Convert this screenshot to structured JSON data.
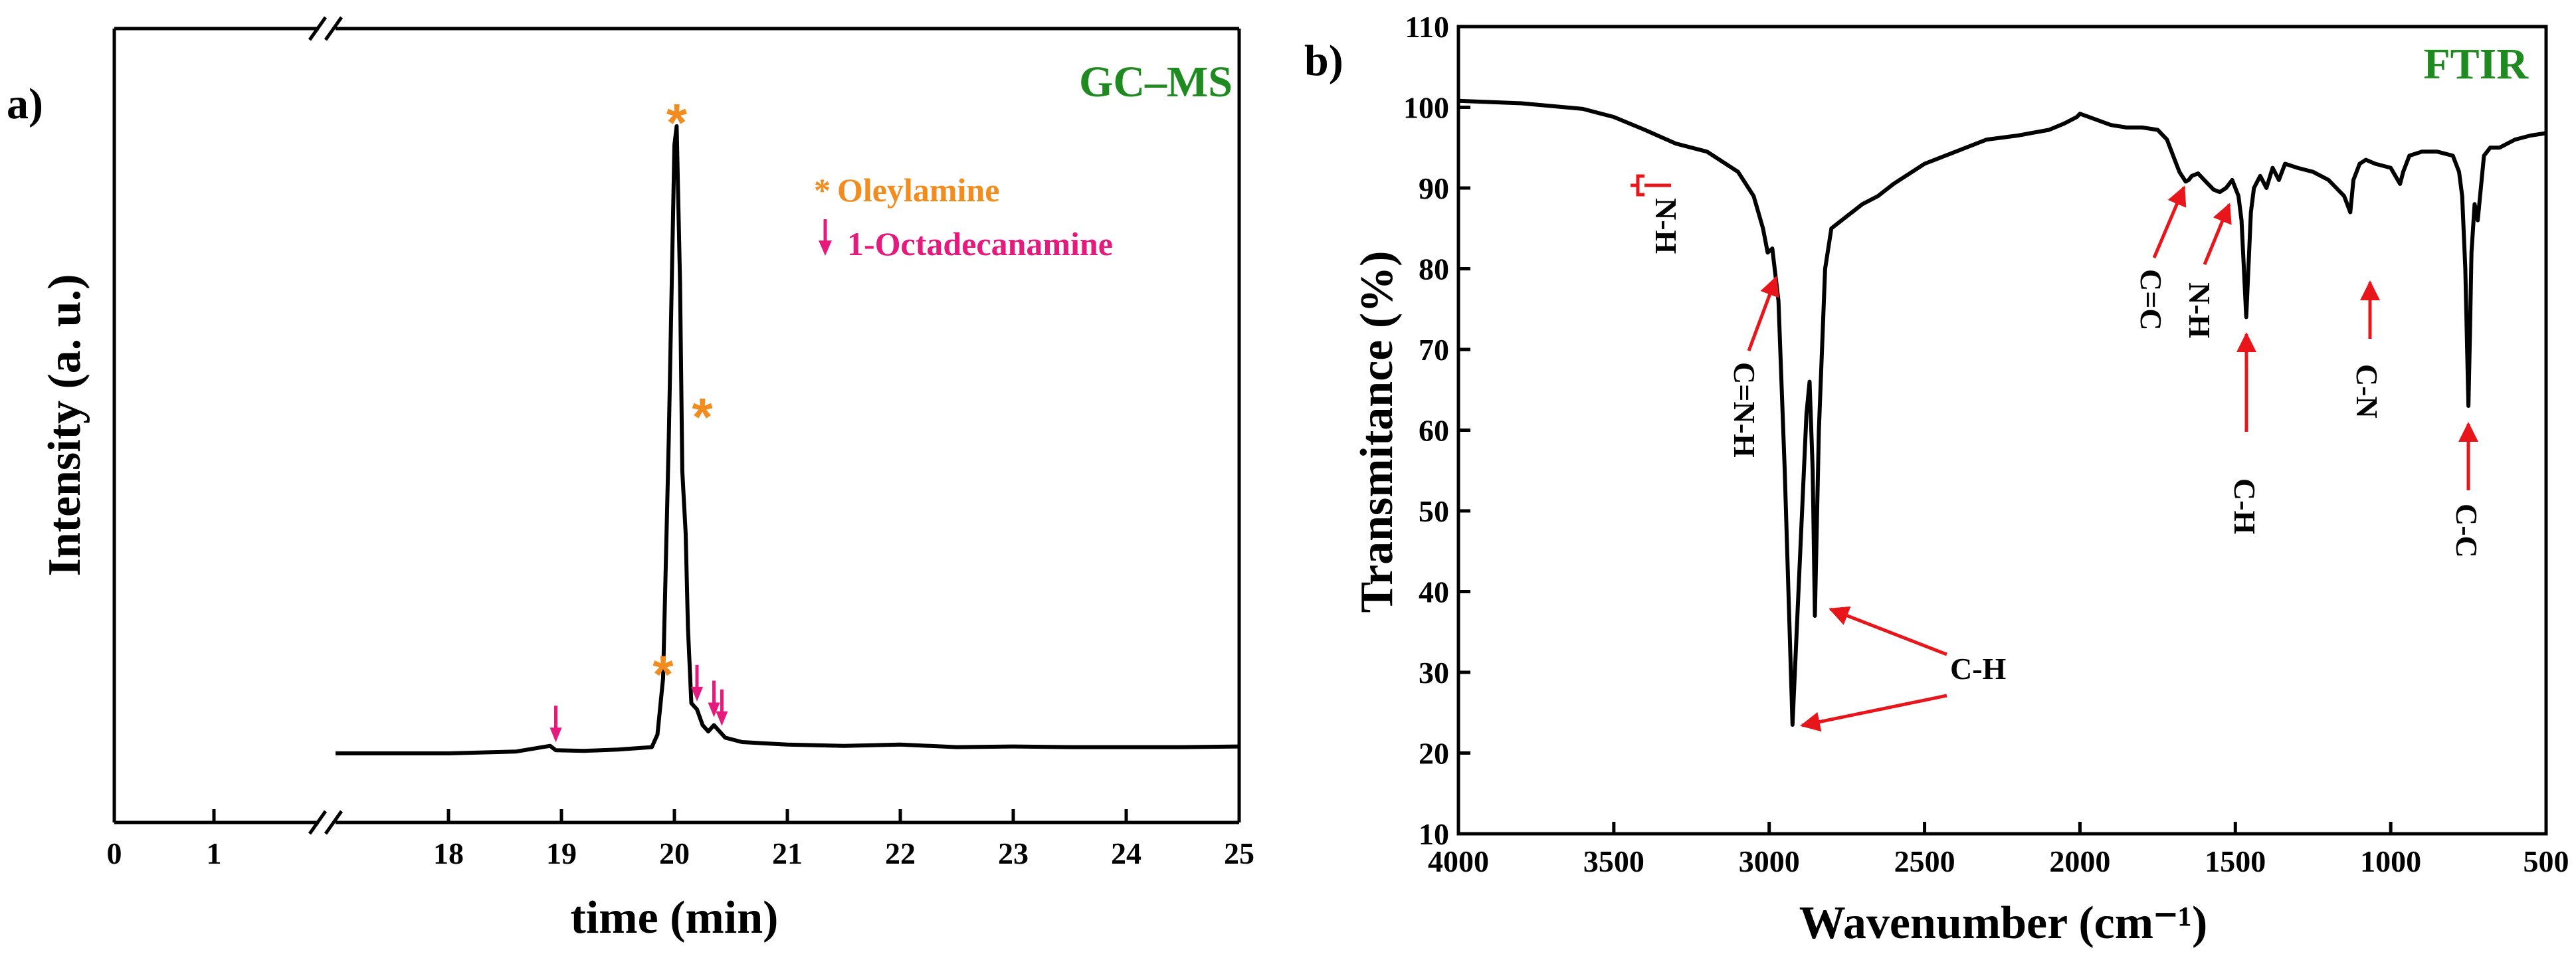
{
  "panel_a_label": "a)",
  "panel_b_label": "b)",
  "chart_data": [
    {
      "type": "line",
      "title": "GC–MS",
      "xlabel": "time (min)",
      "ylabel": "Intensity (a. u.)",
      "x_ticks": [
        "0",
        "1",
        "18",
        "19",
        "20",
        "21",
        "22",
        "23",
        "24",
        "25"
      ],
      "xlim": [
        17,
        25
      ],
      "axis_break": "between 1 and 18",
      "series": [
        {
          "name": "GC-MS trace",
          "x": [
            17.0,
            18.0,
            18.6,
            18.9,
            18.95,
            19.2,
            19.5,
            19.8,
            19.85,
            19.9,
            19.95,
            20.0,
            20.02,
            20.05,
            20.07,
            20.1,
            20.12,
            20.15,
            20.2,
            20.25,
            20.3,
            20.35,
            20.4,
            20.45,
            20.6,
            21.0,
            21.5,
            22.0,
            22.5,
            23.0,
            23.5,
            24.0,
            24.5,
            25.0
          ],
          "values": [
            0.0,
            0.0,
            0.003,
            0.012,
            0.005,
            0.004,
            0.006,
            0.01,
            0.03,
            0.12,
            0.5,
            0.97,
            1.0,
            0.75,
            0.45,
            0.35,
            0.2,
            0.08,
            0.07,
            0.045,
            0.035,
            0.045,
            0.035,
            0.025,
            0.018,
            0.014,
            0.012,
            0.014,
            0.01,
            0.011,
            0.01,
            0.01,
            0.01,
            0.011
          ]
        }
      ],
      "legend": [
        {
          "marker": "*",
          "label": "Oleylamine",
          "color": "#f28c1e"
        },
        {
          "marker": "↓",
          "label": "1-Octadecanamine",
          "color": "#e6197d"
        }
      ],
      "annotations": [
        {
          "marker": "*",
          "x": 20.02,
          "color": "#f28c1e"
        },
        {
          "marker": "*",
          "x": 20.13,
          "color": "#f28c1e"
        },
        {
          "marker": "*",
          "x": 19.9,
          "color": "#f28c1e"
        },
        {
          "marker": "arrow",
          "x": 18.95,
          "color": "#e6197d"
        },
        {
          "marker": "arrow",
          "x": 20.2,
          "color": "#e6197d"
        },
        {
          "marker": "arrow",
          "x": 20.35,
          "color": "#e6197d"
        },
        {
          "marker": "arrow",
          "x": 20.42,
          "color": "#e6197d"
        }
      ]
    },
    {
      "type": "line",
      "title": "FTIR",
      "xlabel": "Wavenumber (cm⁻¹)",
      "ylabel": "Transmitance (%)",
      "xlim": [
        4000,
        500
      ],
      "ylim": [
        10,
        110
      ],
      "x_ticks": [
        "4000",
        "3500",
        "3000",
        "2500",
        "2000",
        "1500",
        "1000",
        "500"
      ],
      "y_ticks": [
        "10",
        "20",
        "30",
        "40",
        "50",
        "60",
        "70",
        "80",
        "90",
        "100",
        "110"
      ],
      "series": [
        {
          "name": "FTIR spectrum",
          "x": [
            4000,
            3800,
            3600,
            3500,
            3400,
            3300,
            3200,
            3100,
            3050,
            3020,
            3005,
            2990,
            2970,
            2950,
            2925,
            2900,
            2880,
            2870,
            2860,
            2853,
            2840,
            2820,
            2800,
            2750,
            2700,
            2650,
            2600,
            2500,
            2400,
            2300,
            2200,
            2100,
            2050,
            2010,
            2000,
            1950,
            1900,
            1850,
            1800,
            1750,
            1720,
            1700,
            1680,
            1660,
            1650,
            1640,
            1620,
            1600,
            1570,
            1550,
            1530,
            1510,
            1490,
            1480,
            1465,
            1450,
            1440,
            1420,
            1400,
            1380,
            1360,
            1340,
            1300,
            1250,
            1200,
            1150,
            1130,
            1120,
            1100,
            1080,
            1050,
            1000,
            970,
            960,
            940,
            900,
            850,
            800,
            780,
            770,
            760,
            750,
            745,
            740,
            730,
            720,
            700,
            680,
            650,
            600,
            550,
            500
          ],
          "values": [
            100.8,
            100.5,
            99.8,
            98.8,
            97.2,
            95.5,
            94.5,
            92.0,
            89.0,
            85.0,
            82.0,
            82.5,
            76.0,
            55.0,
            23.5,
            45.0,
            62.0,
            66.0,
            55.0,
            37.0,
            60.0,
            80.0,
            85.0,
            86.5,
            88.0,
            89.0,
            90.5,
            93.0,
            94.5,
            96.0,
            96.5,
            97.2,
            98.0,
            98.8,
            99.2,
            98.5,
            97.8,
            97.5,
            97.5,
            97.2,
            96.0,
            94.0,
            92.0,
            90.8,
            91.0,
            91.5,
            91.8,
            91.0,
            89.8,
            89.5,
            90.0,
            91.0,
            89.0,
            86.0,
            74.0,
            87.0,
            90.0,
            91.5,
            90.0,
            92.5,
            91.0,
            93.0,
            92.5,
            92.0,
            91.0,
            89.0,
            87.0,
            91.0,
            93.0,
            93.5,
            93.0,
            92.5,
            90.5,
            92.0,
            94.0,
            94.5,
            94.5,
            94.0,
            92.0,
            89.0,
            80.0,
            63.0,
            72.0,
            82.0,
            88.0,
            86.0,
            94.0,
            95.0,
            95.0,
            96.0,
            96.5,
            96.8
          ]
        }
      ],
      "annotations": [
        {
          "label": "N-H",
          "x": 3370
        },
        {
          "label": "C=N-H",
          "x": 2990
        },
        {
          "label": "C-H",
          "x": 2870
        },
        {
          "label": "C=C",
          "x": 1668
        },
        {
          "label": "N-H",
          "x": 1560
        },
        {
          "label": "C-H",
          "x": 1465
        },
        {
          "label": "C-N",
          "x": 1050
        },
        {
          "label": "C-C",
          "x": 745
        }
      ]
    }
  ]
}
